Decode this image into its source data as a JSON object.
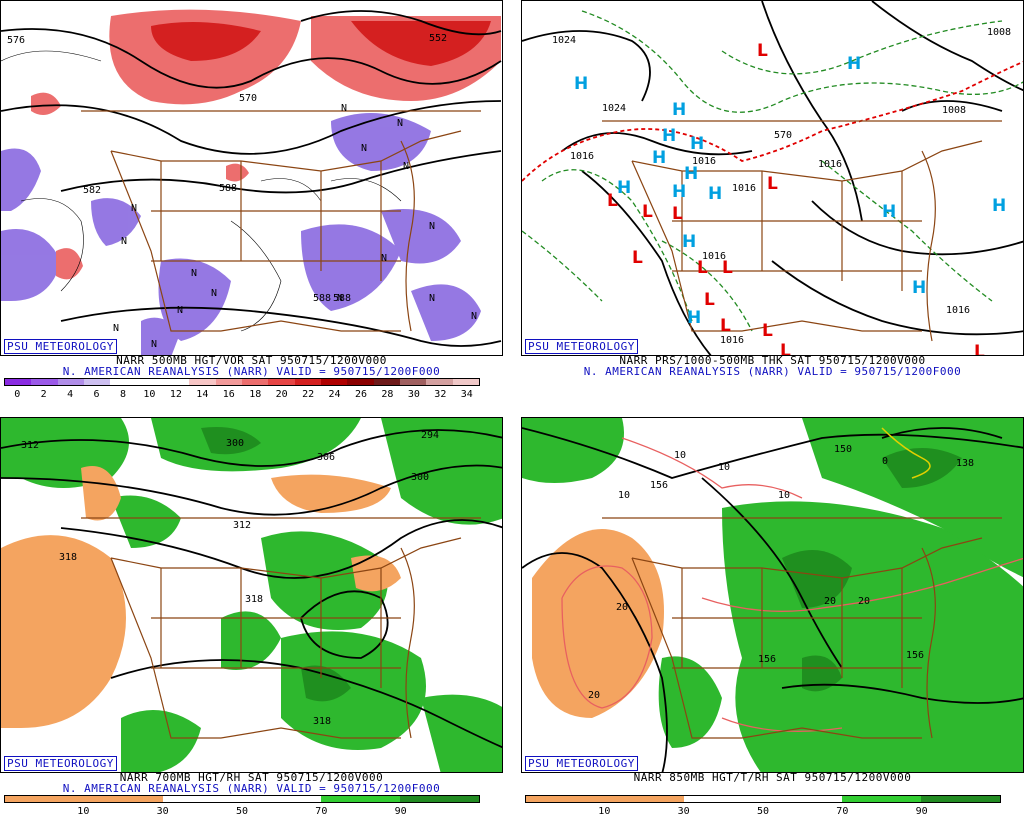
{
  "panels": [
    {
      "id": "p1",
      "credit": "PSU METEOROLOGY",
      "line1": "NARR 500MB HGT/VOR SAT 950715/1200V000",
      "line2": "N. AMERICAN REANALYSIS (NARR) VALID = 950715/1200F000",
      "colorbar": {
        "labels": [
          "0",
          "2",
          "4",
          "6",
          "8",
          "10",
          "12",
          "14",
          "16",
          "18",
          "20",
          "22",
          "24",
          "26",
          "28",
          "30",
          "32",
          "34"
        ],
        "colors": [
          "#8a2be2",
          "#9b59e8",
          "#b08de8",
          "#cdbff0",
          "#ffffff",
          "#ffffff",
          "#ffffff",
          "#f7c6c6",
          "#f29a9a",
          "#ec6e6e",
          "#e64545",
          "#d42020",
          "#b00000",
          "#8b0000",
          "#6e1a1a",
          "#a06060",
          "#d4a0a0",
          "#f0c8c8"
        ]
      },
      "contour_labels": [
        "576",
        "582",
        "552",
        "570",
        "588",
        "588",
        "588"
      ],
      "marks_n": [
        "N",
        "N",
        "N",
        "N",
        "N",
        "N",
        "N",
        "N",
        "N",
        "N",
        "N",
        "N",
        "N",
        "N",
        "N",
        "N"
      ]
    },
    {
      "id": "p2",
      "credit": "PSU METEOROLOGY",
      "line1": "NARR PRS/1000-500MB THK SAT 950715/1200V000",
      "line2": "N. AMERICAN REANALYSIS (NARR) VALID = 950715/1200F000",
      "contour_labels": [
        "1024",
        "1024",
        "1016",
        "1016",
        "1016",
        "1016",
        "1016",
        "1016",
        "1008",
        "1008",
        "570",
        "1016"
      ],
      "high_label": "H",
      "low_label": "L"
    },
    {
      "id": "p3",
      "credit": "PSU METEOROLOGY",
      "line1": "NARR 700MB HGT/RH SAT 950715/1200V000",
      "line2": "N. AMERICAN REANALYSIS (NARR) VALID = 950715/1200F000",
      "colorbar": {
        "labels": [
          "10",
          "30",
          "50",
          "70",
          "90"
        ],
        "colors": [
          "#f4a460",
          "#f4a460",
          "#ffffff",
          "#ffffff",
          "#32cd32",
          "#228b22"
        ]
      },
      "contour_labels": [
        "312",
        "300",
        "306",
        "294",
        "300",
        "312",
        "318",
        "318",
        "318"
      ]
    },
    {
      "id": "p4",
      "credit": "PSU METEOROLOGY",
      "line1": "NARR 850MB HGT/T/RH SAT 950715/1200V000",
      "colorbar": {
        "labels": [
          "10",
          "30",
          "50",
          "70",
          "90"
        ],
        "colors": [
          "#f4a460",
          "#f4a460",
          "#ffffff",
          "#ffffff",
          "#32cd32",
          "#228b22"
        ]
      },
      "contour_labels": [
        "150",
        "156",
        "156",
        "156",
        "138",
        "10",
        "10",
        "10",
        "10",
        "20",
        "20",
        "20",
        "20",
        "0"
      ]
    }
  ],
  "colors": {
    "brown_border": "#8b4513",
    "blue_text": "#1010c0",
    "red_low": "#e00000",
    "blue_high": "#00a0e0",
    "green_dash": "#228b22",
    "orange": "#f4a460",
    "green": "#2eb82e",
    "purple": "#8a6ae0",
    "red_fill": "#ec6e6e"
  }
}
